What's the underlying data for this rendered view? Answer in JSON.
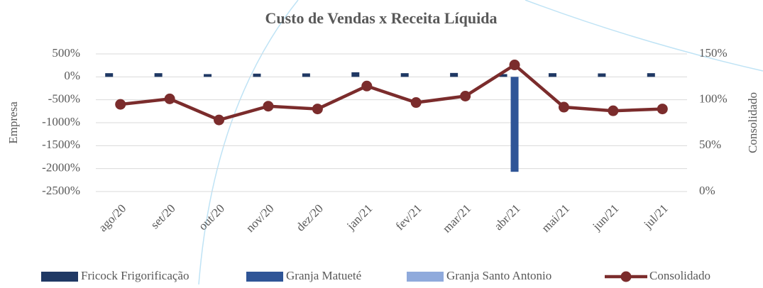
{
  "chart_data": {
    "type": "bar_line",
    "title": "Custo de Vendas x Receita Líquida",
    "y_label": "Empresa",
    "y2_label": "Consolidado",
    "categories": [
      "ago/20",
      "set/20",
      "out/20",
      "nov/20",
      "dez/20",
      "jan/21",
      "fev/21",
      "mar/21",
      "abr/21",
      "mai/21",
      "jun/21",
      "jul/21"
    ],
    "series": [
      {
        "name": "Fricock Frigorificação",
        "color": "#1f3864",
        "type": "bar",
        "values": [
          80,
          80,
          60,
          70,
          75,
          100,
          80,
          85,
          60,
          80,
          75,
          80
        ]
      },
      {
        "name": "Granja Matueté",
        "color": "#2f5597",
        "type": "bar",
        "values": [
          null,
          null,
          null,
          null,
          null,
          null,
          null,
          null,
          -2070,
          null,
          null,
          null
        ]
      },
      {
        "name": "Granja Santo Antonio",
        "color": "#8faadc",
        "type": "bar",
        "values": [
          null,
          null,
          null,
          null,
          null,
          null,
          null,
          null,
          null,
          null,
          null,
          null
        ]
      },
      {
        "name": "Consolidado",
        "color": "#7b2c2c",
        "type": "line",
        "axis": "y2",
        "values": [
          95,
          101,
          78,
          93,
          90,
          115,
          97,
          104,
          138,
          92,
          88,
          90
        ]
      }
    ],
    "ylim": [
      -2500,
      500
    ],
    "yticks": [
      {
        "value": 500,
        "label": "500%"
      },
      {
        "value": 0,
        "label": "0%"
      },
      {
        "value": -500,
        "label": "-500%"
      },
      {
        "value": -1000,
        "label": "-1000%"
      },
      {
        "value": -1500,
        "label": "-1500%"
      },
      {
        "value": -2000,
        "label": "-2000%"
      },
      {
        "value": -2500,
        "label": "-2500%"
      }
    ],
    "y2lim": [
      0,
      150
    ],
    "y2ticks": [
      {
        "value": 0,
        "label": "0%"
      },
      {
        "value": 50,
        "label": "50%"
      },
      {
        "value": 100,
        "label": "100%"
      },
      {
        "value": 150,
        "label": "150%"
      }
    ],
    "grid": true,
    "legend": "bottom"
  }
}
